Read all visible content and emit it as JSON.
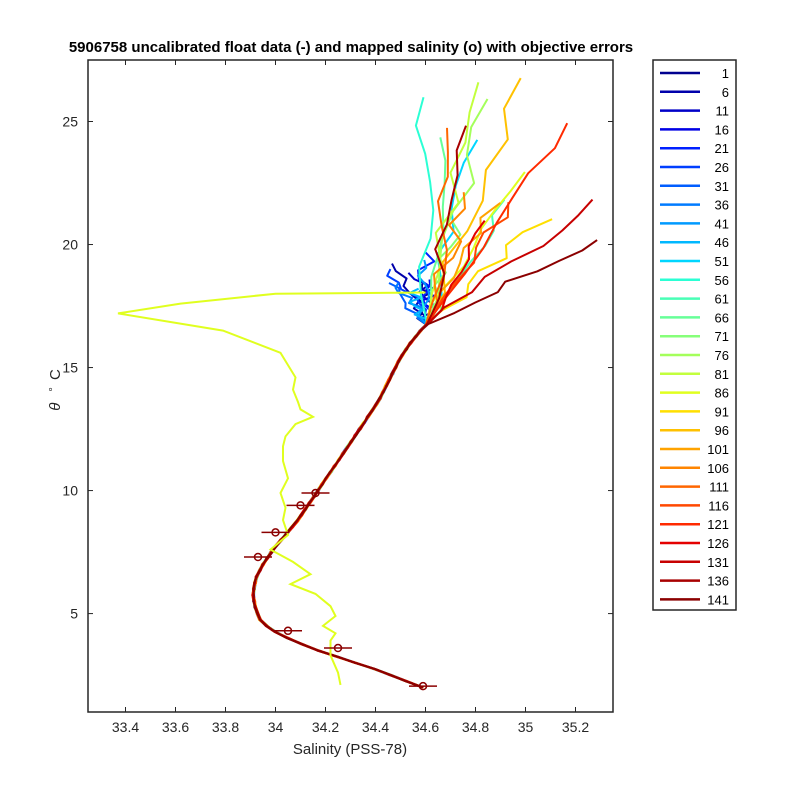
{
  "chart_data": {
    "type": "line",
    "title": "5906758 uncalibrated float data (-) and mapped salinity (o) with objective errors",
    "xlabel": "Salinity (PSS-78)",
    "ylabel_symbol": "θ",
    "ylabel_unit": "C",
    "xlim": [
      33.25,
      35.35
    ],
    "ylim": [
      1.0,
      27.5
    ],
    "xticks": [
      33.4,
      33.6,
      33.8,
      34,
      34.2,
      34.4,
      34.6,
      34.8,
      35,
      35.2
    ],
    "xtick_labels": [
      "33.4",
      "33.6",
      "33.8",
      "34",
      "34.2",
      "34.4",
      "34.6",
      "34.8",
      "35",
      "35.2"
    ],
    "yticks": [
      5,
      10,
      15,
      20,
      25
    ],
    "ytick_labels": [
      "5",
      "10",
      "15",
      "20",
      "25"
    ],
    "grid": false,
    "legend_position": "outside-right",
    "legend": [
      "1",
      "6",
      "11",
      "16",
      "21",
      "26",
      "31",
      "36",
      "41",
      "46",
      "51",
      "56",
      "61",
      "66",
      "71",
      "76",
      "81",
      "86",
      "91",
      "96",
      "101",
      "106",
      "111",
      "116",
      "121",
      "126",
      "131",
      "136",
      "141"
    ],
    "colors": [
      "#00008f",
      "#0000ab",
      "#0000c8",
      "#0000e4",
      "#0002ff",
      "#0020ff",
      "#003fff",
      "#005dff",
      "#007bff",
      "#009aff",
      "#00b8ff",
      "#00d6ff",
      "#00f4ff",
      "#2bffd4",
      "#49ffb6",
      "#67ff98",
      "#86ff79",
      "#a4ff5b",
      "#c2ff3d",
      "#e0ff1f",
      "#fffc00",
      "#ffdf00",
      "#ffc100",
      "#ffa300",
      "#ff8500",
      "#ff6600",
      "#ff4800",
      "#ff2a00",
      "#ff0c00",
      "#e40000",
      "#c70000",
      "#a80000",
      "#8b0000"
    ],
    "deep_profile": {
      "theta": [
        2.0,
        2.3,
        2.7,
        3.1,
        3.5,
        3.9,
        4.3,
        4.7,
        5.2,
        5.8,
        6.4,
        7.0,
        7.6,
        8.2,
        8.8,
        9.4,
        10.0,
        10.6,
        11.2,
        11.8,
        12.4,
        13.0,
        13.6,
        14.2,
        14.8,
        15.4,
        16.0,
        16.5,
        17.0
      ],
      "salinity": [
        34.59,
        34.51,
        34.41,
        34.29,
        34.17,
        34.07,
        33.99,
        33.94,
        33.92,
        33.91,
        33.92,
        33.95,
        33.99,
        34.04,
        34.09,
        34.13,
        34.17,
        34.21,
        34.25,
        34.29,
        34.33,
        34.37,
        34.41,
        34.44,
        34.47,
        34.5,
        34.54,
        34.58,
        34.63
      ]
    },
    "anomaly_profile": {
      "series_index": 17,
      "theta": [
        2.1,
        2.6,
        3.3,
        3.9,
        4.2,
        4.5,
        4.9,
        5.3,
        5.8,
        6.2,
        6.6,
        7.1,
        7.6,
        8.2,
        8.8,
        9.3,
        9.9,
        10.5,
        11.2,
        11.8,
        12.2,
        12.7,
        13.0,
        13.3,
        13.6,
        14.1,
        14.6,
        15.1,
        15.6,
        16.5,
        17.2,
        17.6,
        18.0,
        18.05
      ],
      "salinity": [
        34.26,
        34.25,
        34.22,
        34.22,
        34.24,
        34.19,
        34.24,
        34.22,
        34.16,
        34.06,
        34.14,
        34.07,
        33.98,
        34.05,
        34.03,
        34.04,
        34.02,
        34.05,
        34.03,
        34.03,
        34.04,
        34.08,
        34.15,
        34.1,
        34.09,
        34.07,
        34.08,
        34.05,
        34.02,
        33.79,
        33.37,
        33.62,
        34.0,
        34.6
      ]
    },
    "mapped_markers": {
      "theta": [
        2.05,
        3.6,
        4.3,
        7.3,
        8.3,
        9.4,
        9.9
      ],
      "salinity": [
        34.59,
        34.25,
        34.05,
        33.93,
        34.0,
        34.1,
        34.16
      ]
    }
  }
}
